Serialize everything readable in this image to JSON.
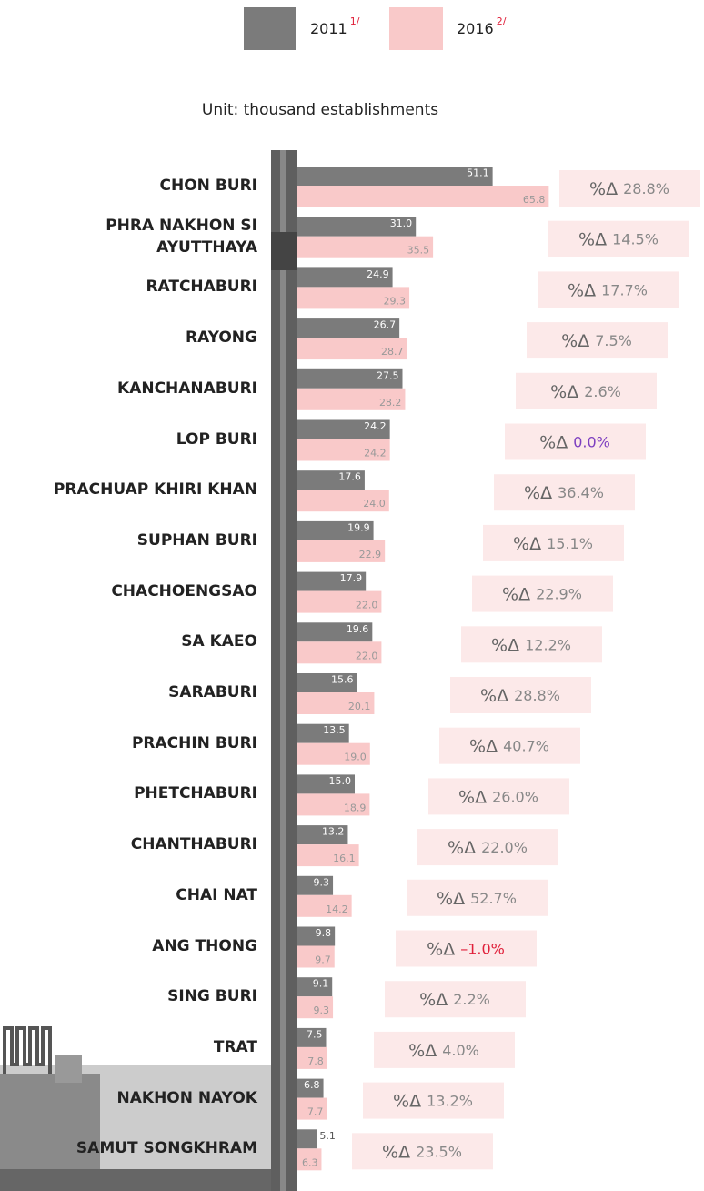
{
  "chart_data": {
    "type": "bar",
    "orientation": "horizontal",
    "subtitle": "Unit: thousand establishments",
    "categories": [
      "CHON BURI",
      "PHRA NAKHON SI\nAYUTTHAYA",
      "RATCHABURI",
      "RAYONG",
      "KANCHANABURI",
      "LOP BURI",
      "PRACHUAP KHIRI KHAN",
      "SUPHAN BURI",
      "CHACHOENGSAO",
      "SA KAEO",
      "SARABURI",
      "PRACHIN BURI",
      "PHETCHABURI",
      "CHANTHABURI",
      "CHAI NAT",
      "ANG THONG",
      "SING BURI",
      "TRAT",
      "NAKHON NAYOK",
      "SAMUT SONGKHRAM"
    ],
    "series": [
      {
        "name": "2011",
        "note": "1/",
        "color": "#7b7b7b",
        "values": [
          51.1,
          31.0,
          24.9,
          26.7,
          27.5,
          24.2,
          17.6,
          19.9,
          17.9,
          19.6,
          15.6,
          13.5,
          15.0,
          13.2,
          9.3,
          9.8,
          9.1,
          7.5,
          6.8,
          5.1
        ],
        "value_labels": [
          "51.1",
          "31.0",
          "24.9",
          "26.7",
          "27.5",
          "24.2",
          "17.6",
          "19.9",
          "17.9",
          "19.6",
          "15.6",
          "13.5",
          "15.0",
          "13.2",
          "9.3",
          "9.8",
          "9.1",
          "7.5",
          "6.8",
          "5.1"
        ]
      },
      {
        "name": "2016",
        "note": "2/",
        "color": "#f9c9c9",
        "values": [
          65.8,
          35.5,
          29.3,
          28.7,
          28.2,
          24.2,
          24.0,
          22.9,
          22.0,
          22.0,
          20.1,
          19.0,
          18.9,
          16.1,
          14.2,
          9.7,
          9.3,
          7.8,
          7.7,
          6.3
        ],
        "value_labels": [
          "65.8",
          "35.5",
          "29.3",
          "28.7",
          "28.2",
          "24.2",
          "24.0",
          "22.9",
          "22.0",
          "22.0",
          "20.1",
          "19.0",
          "18.9",
          "16.1",
          "14.2",
          "9.7",
          "9.3",
          "7.8",
          "7.7",
          "6.3"
        ]
      }
    ],
    "change_prefix": "%Δ",
    "change_labels": [
      "28.8%",
      "14.5%",
      "17.7%",
      "7.5%",
      "2.6%",
      "0.0%",
      "36.4%",
      "15.1%",
      "22.9%",
      "12.2%",
      "28.8%",
      "40.7%",
      "26.0%",
      "22.0%",
      "52.7%",
      "–1.0%",
      "2.2%",
      "4.0%",
      "13.2%",
      "23.5%"
    ],
    "change_colors": [
      "#888",
      "#888",
      "#888",
      "#888",
      "#888",
      "#7d3fc0",
      "#888",
      "#888",
      "#888",
      "#888",
      "#888",
      "#888",
      "#888",
      "#888",
      "#888",
      "#e0203a",
      "#888",
      "#888",
      "#888",
      "#888"
    ],
    "note_color": "#e0203a"
  }
}
